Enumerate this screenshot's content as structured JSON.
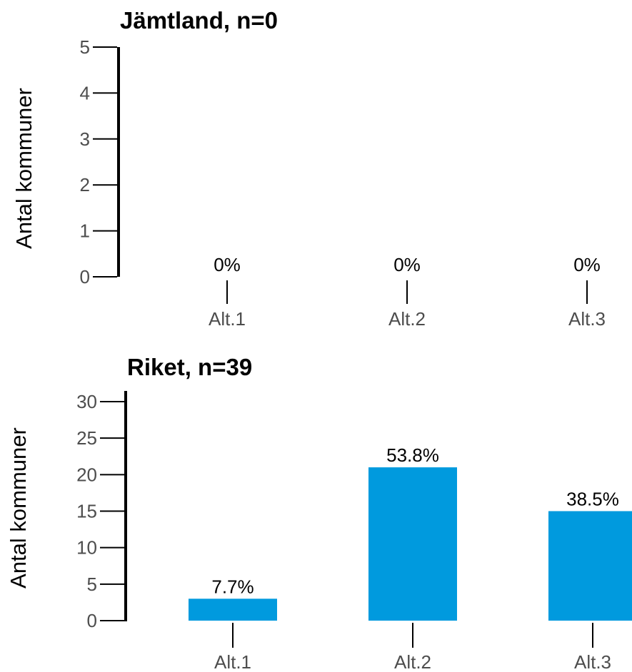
{
  "chart_data": [
    {
      "type": "bar",
      "title": "Jämtland, n=0",
      "ylabel": "Antal kommuner",
      "categories": [
        "Alt.1",
        "Alt.2",
        "Alt.3"
      ],
      "values": [
        0,
        0,
        0
      ],
      "data_labels": [
        "0%",
        "0%",
        "0%"
      ],
      "yticks": [
        0,
        1,
        2,
        3,
        4,
        5
      ],
      "ylim": [
        0,
        5
      ],
      "grid": false,
      "color": "#009ADE"
    },
    {
      "type": "bar",
      "title": "Riket, n=39",
      "ylabel": "Antal kommuner",
      "categories": [
        "Alt.1",
        "Alt.2",
        "Alt.3"
      ],
      "values": [
        3,
        21,
        15
      ],
      "data_labels": [
        "7.7%",
        "53.8%",
        "38.5%"
      ],
      "yticks": [
        0,
        5,
        10,
        15,
        20,
        25,
        30
      ],
      "ylim": [
        0,
        31
      ],
      "grid": false,
      "color": "#009ADE"
    }
  ]
}
